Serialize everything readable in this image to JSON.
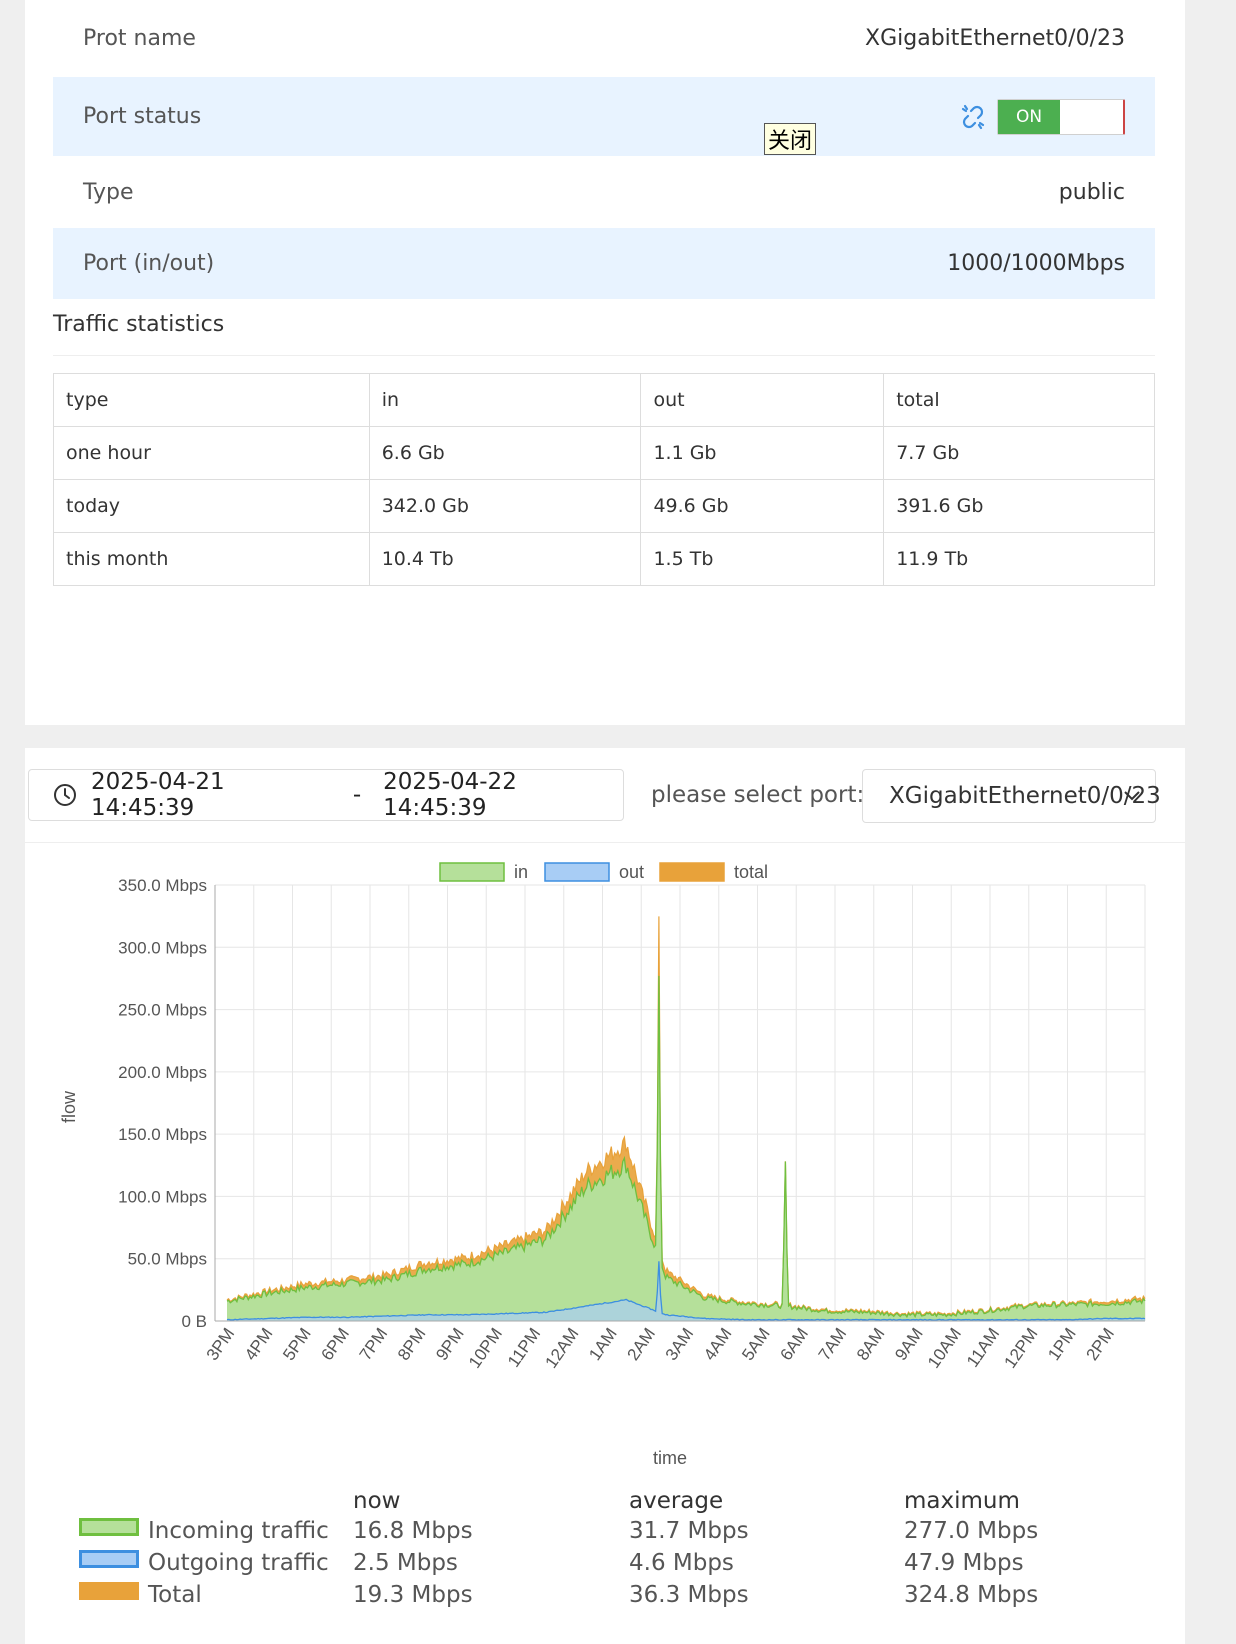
{
  "port_info": {
    "name_label": "Prot name",
    "name_value": "XGigabitEthernet0/0/23",
    "status_label": "Port status",
    "status_toggle": "ON",
    "tooltip": "关闭",
    "type_label": "Type",
    "type_value": "public",
    "speed_label": "Port (in/out)",
    "speed_value": "1000/1000Mbps"
  },
  "traffic": {
    "title": "Traffic statistics",
    "headers": [
      "type",
      "in",
      "out",
      "total"
    ],
    "rows": [
      [
        "one hour",
        "6.6 Gb",
        "1.1 Gb",
        "7.7 Gb"
      ],
      [
        "today",
        "342.0 Gb",
        "49.6 Gb",
        "391.6 Gb"
      ],
      [
        "this month",
        "10.4 Tb",
        "1.5 Tb",
        "11.9 Tb"
      ]
    ]
  },
  "filter": {
    "start": "2025-04-21 14:45:39",
    "separator": "-",
    "end": "2025-04-22 14:45:39",
    "port_label": "please select port:",
    "port_value": "XGigabitEthernet0/0/23"
  },
  "chart_data": {
    "type": "area",
    "xlabel": "time",
    "ylabel": "flow",
    "ylim": [
      0,
      350
    ],
    "yunit": "Mbps",
    "yticks": [
      "0 B",
      "50.0 Mbps",
      "100.0 Mbps",
      "150.0 Mbps",
      "200.0 Mbps",
      "250.0 Mbps",
      "300.0 Mbps",
      "350.0 Mbps"
    ],
    "categories": [
      "3PM",
      "4PM",
      "5PM",
      "6PM",
      "7PM",
      "8PM",
      "9PM",
      "10PM",
      "11PM",
      "12AM",
      "1AM",
      "2AM",
      "3AM",
      "4AM",
      "5AM",
      "6AM",
      "7AM",
      "8AM",
      "9AM",
      "10AM",
      "11AM",
      "12PM",
      "1PM",
      "2PM"
    ],
    "grid": true,
    "legend_position": "top",
    "series": [
      {
        "name": "in",
        "color": "#6fbf3f",
        "fill": "#b5e09a",
        "values": [
          16,
          22,
          27,
          30,
          33,
          42,
          46,
          55,
          66,
          108,
          126,
          35,
          18,
          14,
          12,
          8,
          7,
          5,
          5,
          8,
          12,
          13,
          14,
          16
        ]
      },
      {
        "name": "out",
        "color": "#3d8fe0",
        "fill": "#a8cdf5",
        "values": [
          1,
          2,
          3,
          3,
          4,
          5,
          5,
          6,
          7,
          12,
          17,
          5,
          2,
          1,
          1,
          1,
          1,
          1,
          1,
          1,
          1,
          1,
          2,
          2
        ]
      },
      {
        "name": "total",
        "color": "#e8a23a",
        "fill": "#e8a23a",
        "values": [
          17,
          24,
          30,
          33,
          37,
          47,
          51,
          61,
          73,
          120,
          143,
          40,
          20,
          15,
          13,
          9,
          8,
          6,
          6,
          9,
          13,
          14,
          16,
          18
        ]
      }
    ],
    "spikes": [
      {
        "x": "1:50AM",
        "series": "total",
        "value": 324.8
      },
      {
        "x": "1:50AM",
        "series": "in",
        "value": 277.0
      },
      {
        "x": "1:50AM",
        "series": "out",
        "value": 47.9
      },
      {
        "x": "5AM",
        "series": "in",
        "value": 128
      }
    ]
  },
  "summary": {
    "headers": [
      "now",
      "average",
      "maximum"
    ],
    "rows": [
      {
        "label": "Incoming traffic",
        "color": "#b5e09a",
        "border": "#6fbf3f",
        "now": "16.8 Mbps",
        "average": "31.7 Mbps",
        "maximum": "277.0 Mbps"
      },
      {
        "label": "Outgoing traffic",
        "color": "#a8cdf5",
        "border": "#3d8fe0",
        "now": "2.5 Mbps",
        "average": "4.6 Mbps",
        "maximum": "47.9 Mbps"
      },
      {
        "label": "Total",
        "color": "#e8a23a",
        "border": "#e8a23a",
        "now": "19.3 Mbps",
        "average": "36.3 Mbps",
        "maximum": "324.8 Mbps"
      }
    ]
  }
}
